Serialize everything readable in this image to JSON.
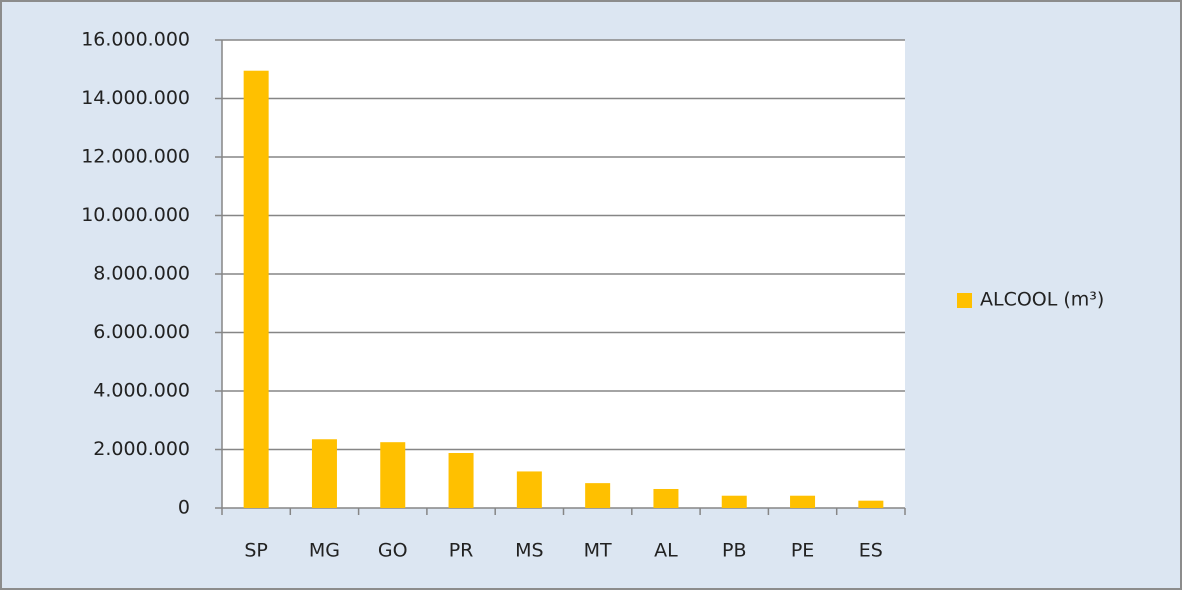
{
  "chart_data": {
    "type": "bar",
    "categories": [
      "SP",
      "MG",
      "GO",
      "PR",
      "MS",
      "MT",
      "AL",
      "PB",
      "PE",
      "ES"
    ],
    "series": [
      {
        "name": "ALCOOL (m³)",
        "color": "#ffc000",
        "values": [
          14950000,
          2350000,
          2250000,
          1880000,
          1250000,
          850000,
          650000,
          420000,
          420000,
          250000
        ]
      }
    ],
    "ylim": [
      0,
      16000000
    ],
    "yticks": [
      0,
      {
        "value": 2000000,
        "label": "2.000.000"
      },
      {
        "value": 4000000,
        "label": "4.000.000"
      },
      {
        "value": 6000000,
        "label": "6.000.000"
      },
      {
        "value": 8000000,
        "label": "8.000.000"
      },
      {
        "value": 10000000,
        "label": "10.000.000"
      },
      {
        "value": 12000000,
        "label": "12.000.000"
      },
      {
        "value": 14000000,
        "label": "14.000.000"
      },
      {
        "value": 16000000,
        "label": "16.000.000"
      }
    ],
    "grid": true,
    "legend": "right"
  }
}
